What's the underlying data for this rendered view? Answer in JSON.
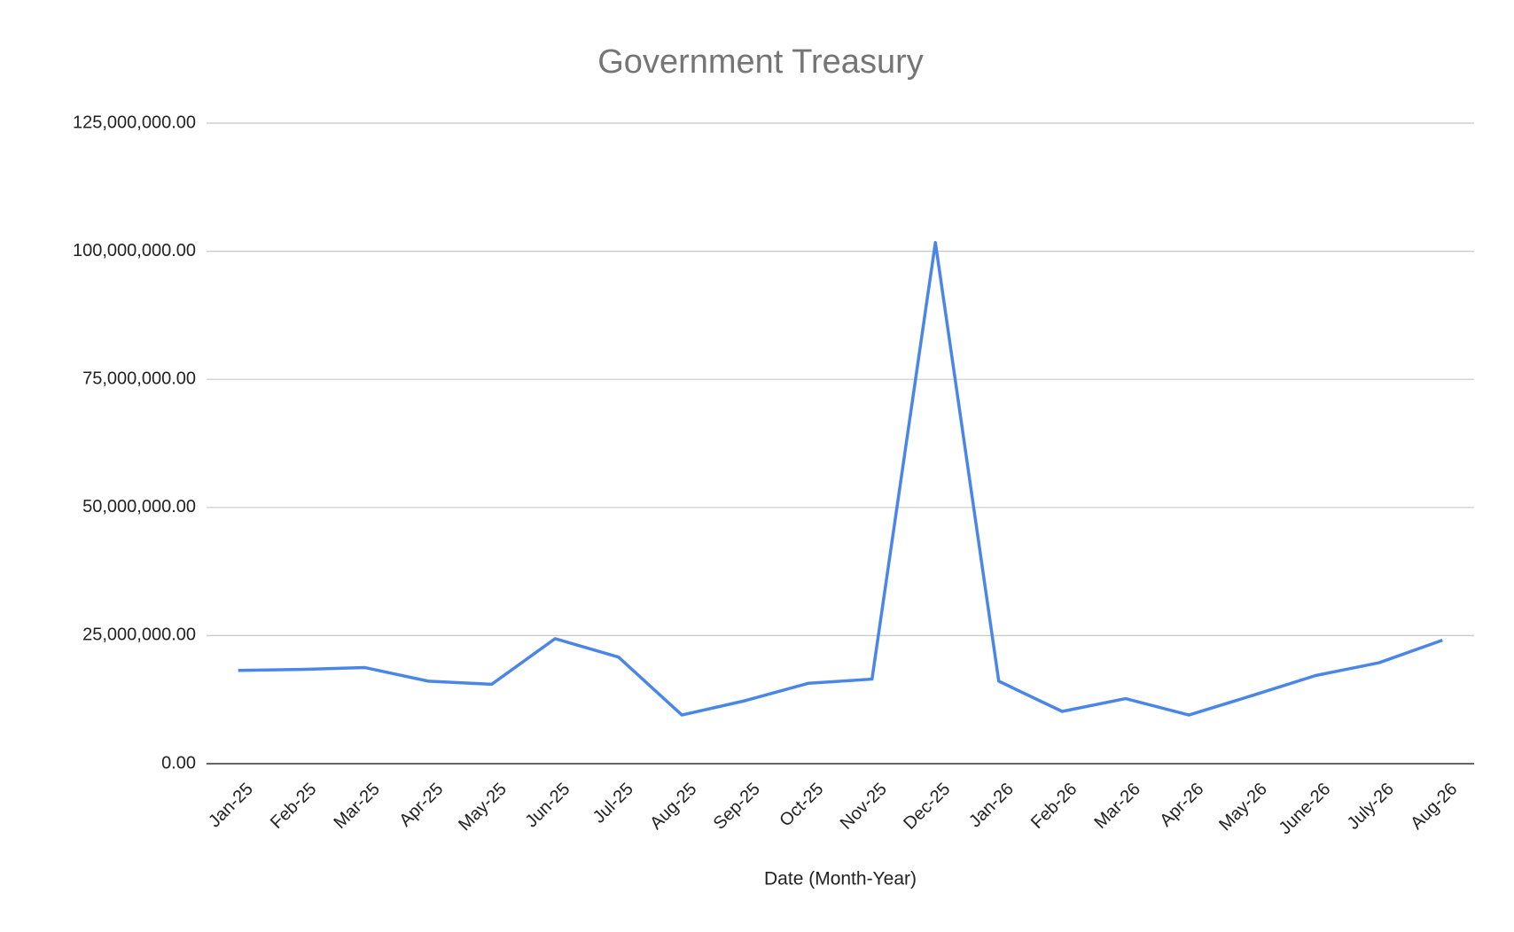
{
  "chart_data": {
    "type": "line",
    "title": "Government Treasury",
    "x_label": "Date (Month-Year)",
    "categories": [
      "Jan-25",
      "Feb-25",
      "Mar-25",
      "Apr-25",
      "May-25",
      "Jun-25",
      "Jul-25",
      "Aug-25",
      "Sep-25",
      "Oct-25",
      "Nov-25",
      "Dec-25",
      "Jan-26",
      "Feb-26",
      "Mar-26",
      "Apr-26",
      "May-26",
      "June-26",
      "July-26",
      "Aug-26"
    ],
    "series": [
      {
        "name": "Government Treasury",
        "color": "#4a86e8",
        "values": [
          18200000,
          18400000,
          18750000,
          16100000,
          15500000,
          24400000,
          20800000,
          9500000,
          12300000,
          15700000,
          16500000,
          101700000,
          16100000,
          10200000,
          12700000,
          9500000,
          13300000,
          17200000,
          19700000,
          24100000
        ]
      }
    ],
    "ylim": [
      0,
      125000000
    ],
    "yticks": [
      {
        "value": 0,
        "label": "0.00"
      },
      {
        "value": 25000000,
        "label": "25,000,000.00"
      },
      {
        "value": 50000000,
        "label": "50,000,000.00"
      },
      {
        "value": 75000000,
        "label": "75,000,000.00"
      },
      {
        "value": 100000000,
        "label": "100,000,000.00"
      },
      {
        "value": 125000000,
        "label": "125,000,000.00"
      }
    ],
    "grid": true
  }
}
